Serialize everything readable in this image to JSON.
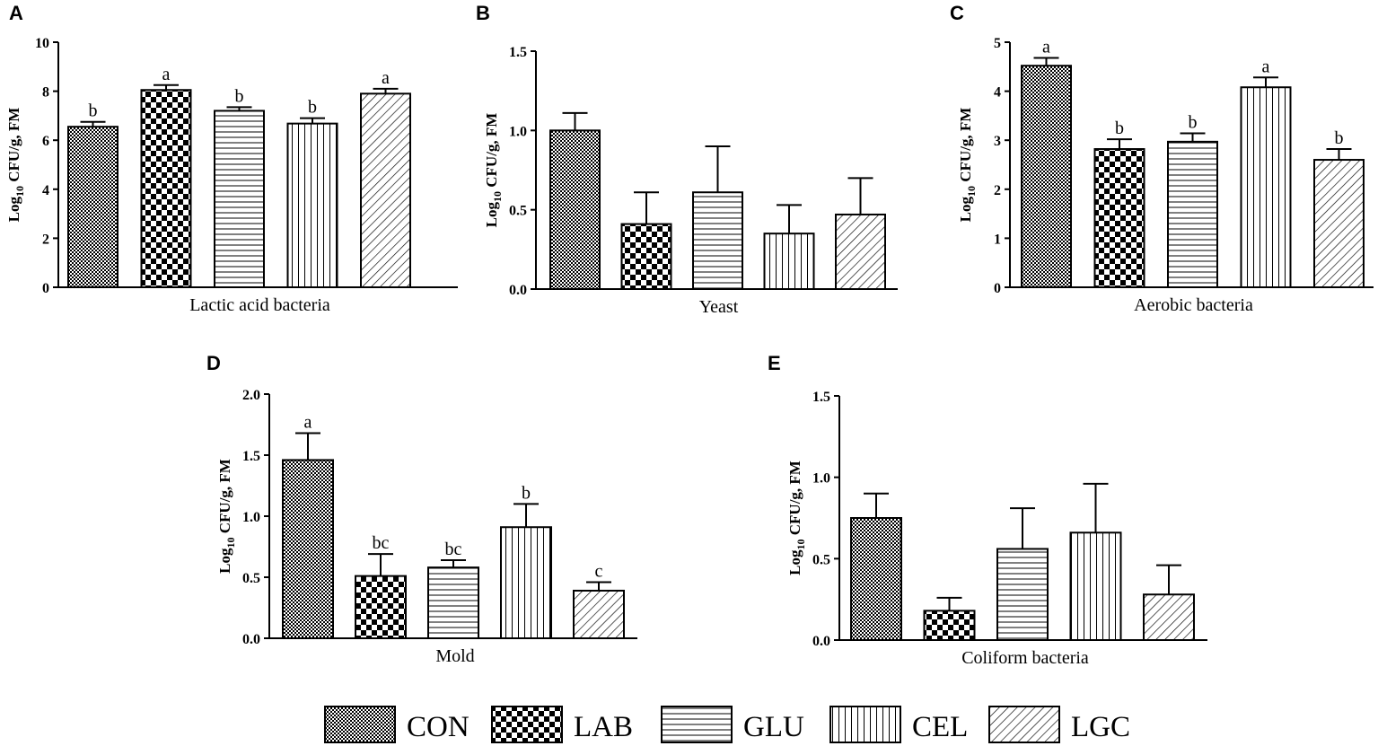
{
  "legend": [
    {
      "key": "CON",
      "label": "CON",
      "pattern": "pat-con"
    },
    {
      "key": "LAB",
      "label": "LAB",
      "pattern": "pat-lab"
    },
    {
      "key": "GLU",
      "label": "GLU",
      "pattern": "pat-glu"
    },
    {
      "key": "CEL",
      "label": "CEL",
      "pattern": "pat-cel"
    },
    {
      "key": "LGC",
      "label": "LGC",
      "pattern": "pat-lgc"
    }
  ],
  "colors": {
    "ink": "#000000",
    "background": "#ffffff"
  },
  "chart_data": [
    {
      "panel": "A",
      "type": "bar",
      "xlabel": "Lactic acid bacteria",
      "ylabel": {
        "main": "Log",
        "sub": "10",
        "rest": " CFU/g, FM"
      },
      "ylim": [
        0,
        10
      ],
      "yticks": [
        0,
        2,
        4,
        6,
        8,
        10
      ],
      "tick_labels": [
        "0",
        "2",
        "4",
        "6",
        "8",
        "10"
      ],
      "categories": [
        "CON",
        "LAB",
        "GLU",
        "CEL",
        "LGC"
      ],
      "values": [
        6.55,
        8.05,
        7.2,
        6.68,
        7.9
      ],
      "errors": [
        0.2,
        0.2,
        0.15,
        0.22,
        0.2
      ],
      "letters": [
        "b",
        "a",
        "b",
        "b",
        "a"
      ]
    },
    {
      "panel": "B",
      "type": "bar",
      "xlabel": "Yeast",
      "ylabel": {
        "main": "Log",
        "sub": "10",
        "rest": " CFU/g, FM"
      },
      "ylim": [
        0,
        1.5
      ],
      "yticks": [
        0,
        0.5,
        1.0,
        1.5
      ],
      "tick_labels": [
        "0.0",
        "0.5",
        "1.0",
        "1.5"
      ],
      "categories": [
        "CON",
        "LAB",
        "GLU",
        "CEL",
        "LGC"
      ],
      "values": [
        1.0,
        0.41,
        0.61,
        0.35,
        0.47
      ],
      "errors": [
        0.11,
        0.2,
        0.29,
        0.18,
        0.23
      ],
      "letters": [
        "",
        "",
        "",
        "",
        ""
      ]
    },
    {
      "panel": "C",
      "type": "bar",
      "xlabel": "Aerobic bacteria",
      "ylabel": {
        "main": "Log",
        "sub": "10",
        "rest": " CFU/g, FM"
      },
      "ylim": [
        0,
        5
      ],
      "yticks": [
        0,
        1,
        2,
        3,
        4,
        5
      ],
      "tick_labels": [
        "0",
        "1",
        "2",
        "3",
        "4",
        "5"
      ],
      "categories": [
        "CON",
        "LAB",
        "GLU",
        "CEL",
        "LGC"
      ],
      "values": [
        4.52,
        2.82,
        2.97,
        4.08,
        2.6
      ],
      "errors": [
        0.16,
        0.2,
        0.17,
        0.2,
        0.22
      ],
      "letters": [
        "a",
        "b",
        "b",
        "a",
        "b"
      ]
    },
    {
      "panel": "D",
      "type": "bar",
      "xlabel": "Mold",
      "ylabel": {
        "main": "Log",
        "sub": "10",
        "rest": " CFU/g, FM"
      },
      "ylim": [
        0,
        2.0
      ],
      "yticks": [
        0,
        0.5,
        1.0,
        1.5,
        2.0
      ],
      "tick_labels": [
        "0.0",
        "0.5",
        "1.0",
        "1.5",
        "2.0"
      ],
      "categories": [
        "CON",
        "LAB",
        "GLU",
        "CEL",
        "LGC"
      ],
      "values": [
        1.46,
        0.51,
        0.58,
        0.91,
        0.39
      ],
      "errors": [
        0.22,
        0.18,
        0.06,
        0.19,
        0.07
      ],
      "letters": [
        "a",
        "bc",
        "bc",
        "b",
        "c"
      ]
    },
    {
      "panel": "E",
      "type": "bar",
      "xlabel": "Coliform bacteria",
      "ylabel": {
        "main": "Log",
        "sub": "10",
        "rest": " CFU/g, FM"
      },
      "ylim": [
        0,
        1.5
      ],
      "yticks": [
        0,
        0.5,
        1.0,
        1.5
      ],
      "tick_labels": [
        "0.0",
        "0.5",
        "1.0",
        "1.5"
      ],
      "categories": [
        "CON",
        "LAB",
        "GLU",
        "CEL",
        "LGC"
      ],
      "values": [
        0.75,
        0.18,
        0.56,
        0.66,
        0.28
      ],
      "errors": [
        0.15,
        0.08,
        0.25,
        0.3,
        0.18
      ],
      "letters": [
        "",
        "",
        "",
        "",
        ""
      ]
    }
  ]
}
